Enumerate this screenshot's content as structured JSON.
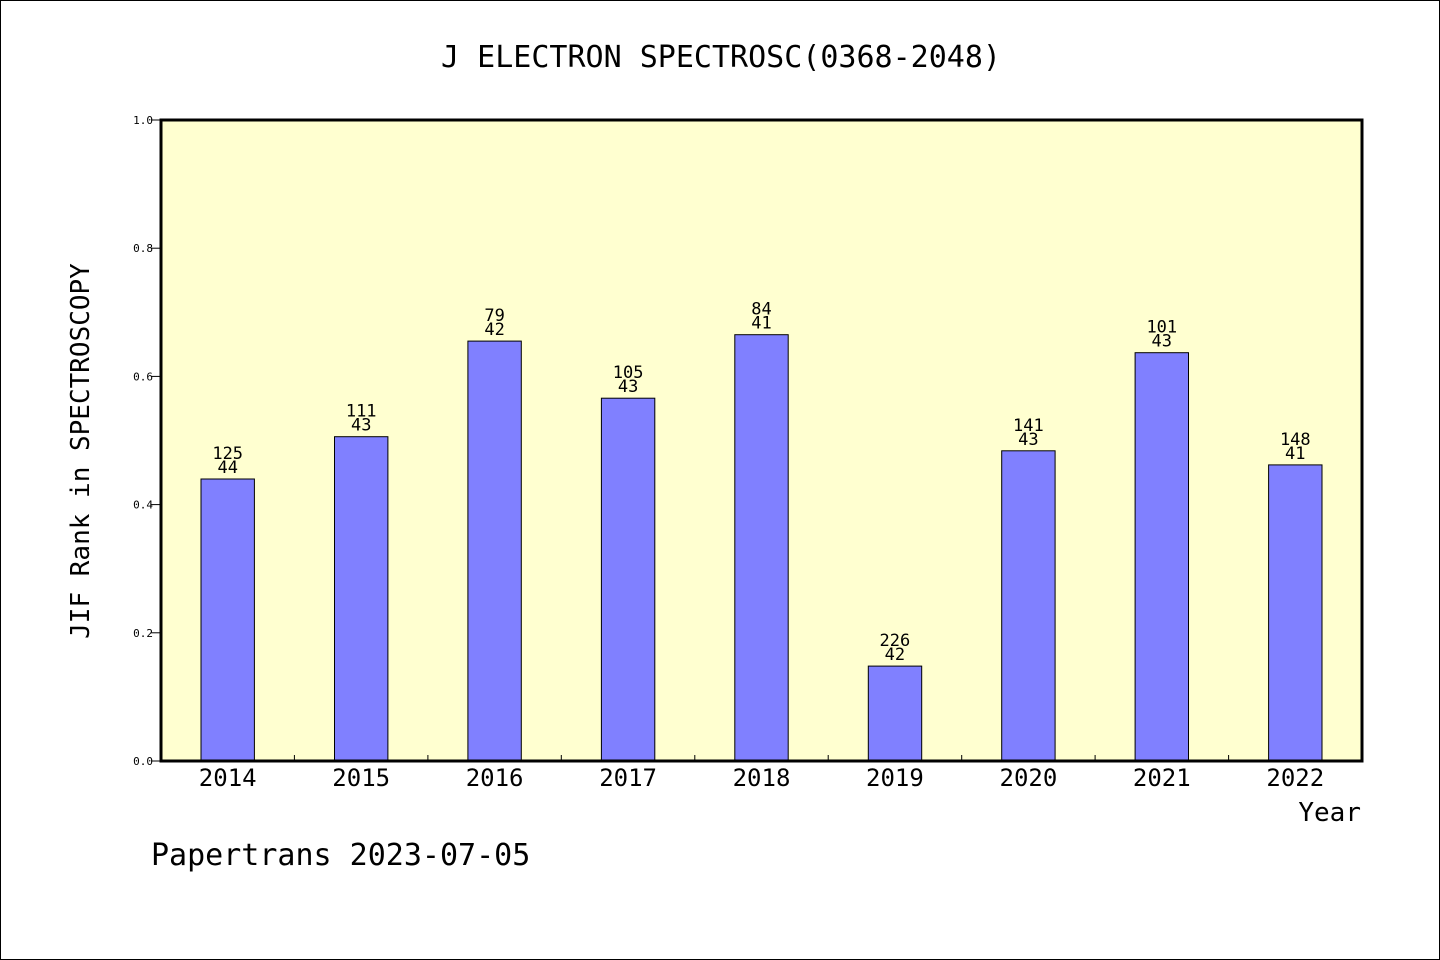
{
  "chart_data": {
    "type": "bar",
    "title": "J ELECTRON SPECTROSC(0368-2048)",
    "xlabel": "Year",
    "ylabel": "JIF Rank in SPECTROSCOPY",
    "ylim": [
      0,
      1.0
    ],
    "yticks": [
      "0.0",
      "0.2",
      "0.4",
      "0.6",
      "0.8",
      "1.0"
    ],
    "ytick_values": [
      0,
      0.2,
      0.4,
      0.6,
      0.8,
      1.0
    ],
    "categories": [
      "2014",
      "2015",
      "2016",
      "2017",
      "2018",
      "2019",
      "2020",
      "2021",
      "2022"
    ],
    "values": [
      0.44,
      0.506,
      0.655,
      0.566,
      0.665,
      0.148,
      0.484,
      0.637,
      0.462
    ],
    "rank_labels": [
      "125",
      "111",
      "79",
      "105",
      "84",
      "226",
      "141",
      "101",
      "148"
    ],
    "total_labels": [
      "44",
      "43",
      "42",
      "43",
      "41",
      "42",
      "43",
      "43",
      "41"
    ],
    "grid": false,
    "legend": "none"
  },
  "colors": {
    "plot_background": "#ffffd0",
    "bar_fill": "#8080ff",
    "bar_stroke": "#000000",
    "axis": "#000000"
  },
  "footer": {
    "text": "Papertrans 2023-07-05"
  }
}
